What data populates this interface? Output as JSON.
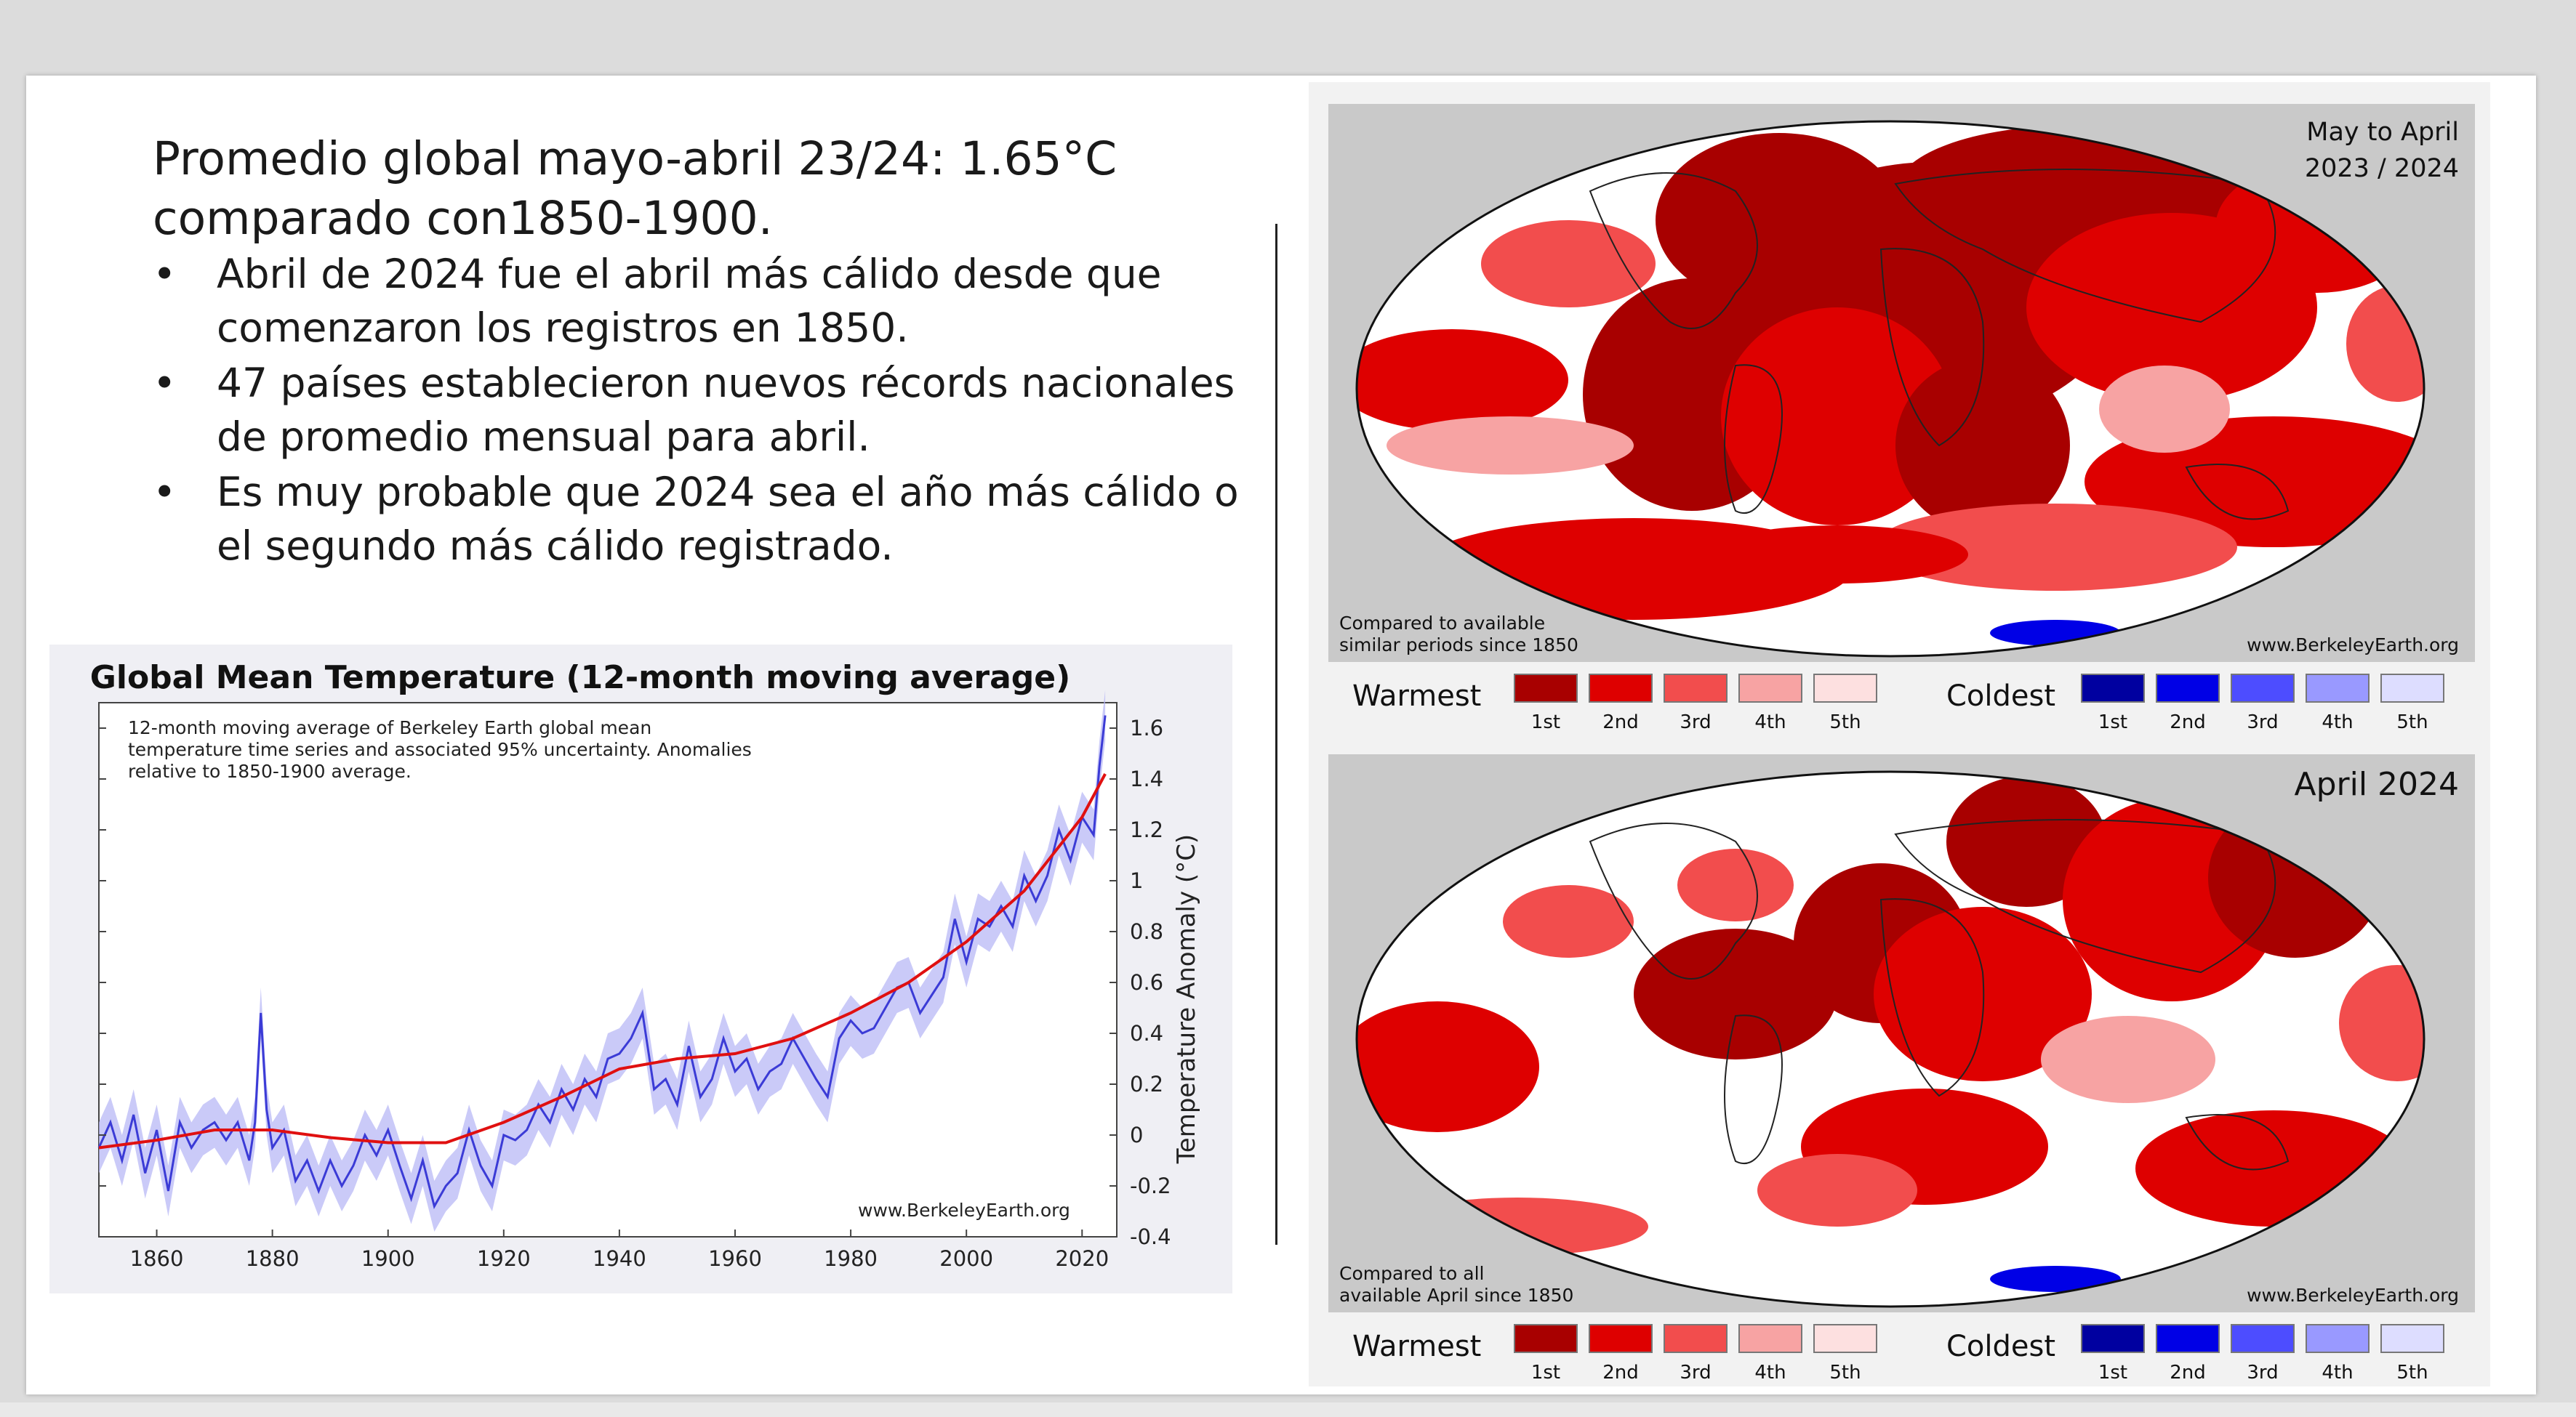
{
  "headline": [
    "Promedio global mayo-abril 23/24: 1.65°C",
    "comparado con1850-1900."
  ],
  "bullets": [
    "Abril de 2024 fue el abril más cálido desde que comenzaron los registros en 1850.",
    "47 países establecieron nuevos récords nacionales de promedio mensual para abril.",
    "Es muy probable que 2024 sea el año más cálido o el segundo más cálido registrado."
  ],
  "bullet_symbol": "•",
  "colors": {
    "warm": [
      "#a80000",
      "#de0000",
      "#f24d4d",
      "#f7a3a3",
      "#fde0e0"
    ],
    "cold": [
      "#0000a0",
      "#0000e6",
      "#4d4dff",
      "#9999ff",
      "#ddddff"
    ],
    "series_raw": "#3b3bd6",
    "series_band": "#b3b3f5",
    "series_smooth": "#e01010"
  },
  "chart_data": {
    "type": "line",
    "title": "Global Mean Temperature (12-month moving average)",
    "note": "12-month moving average of Berkeley Earth global mean temperature time series and associated 95% uncertainty. Anomalies relative to 1850-1900 average.",
    "source": "www.BerkeleyEarth.org",
    "xlabel": "",
    "ylabel": "Temperature Anomaly (°C)",
    "xlim": [
      1850,
      2026
    ],
    "ylim": [
      -0.4,
      1.7
    ],
    "xticks": [
      1860,
      1880,
      1900,
      1920,
      1940,
      1960,
      1980,
      2000,
      2020
    ],
    "yticks": [
      -0.4,
      -0.2,
      0,
      0.2,
      0.4,
      0.6,
      0.8,
      1,
      1.2,
      1.4,
      1.6
    ],
    "ytick_labels": [
      "-0.4",
      "-0.2",
      "0",
      "0.2",
      "0.4",
      "0.6",
      "0.8",
      "1",
      "1.2",
      "1.4",
      "1.6"
    ],
    "grid": false,
    "series": [
      {
        "role": "12-month moving average",
        "x": [
          1850,
          1852,
          1854,
          1856,
          1858,
          1860,
          1862,
          1864,
          1866,
          1868,
          1870,
          1872,
          1874,
          1876,
          1877,
          1878,
          1879,
          1880,
          1882,
          1884,
          1886,
          1888,
          1890,
          1892,
          1894,
          1896,
          1898,
          1900,
          1902,
          1904,
          1906,
          1908,
          1910,
          1912,
          1914,
          1916,
          1918,
          1920,
          1922,
          1924,
          1926,
          1928,
          1930,
          1932,
          1934,
          1936,
          1938,
          1940,
          1942,
          1944,
          1946,
          1948,
          1950,
          1952,
          1954,
          1956,
          1958,
          1960,
          1962,
          1964,
          1966,
          1968,
          1970,
          1972,
          1974,
          1976,
          1978,
          1980,
          1982,
          1984,
          1986,
          1988,
          1990,
          1992,
          1994,
          1996,
          1998,
          2000,
          2002,
          2004,
          2006,
          2008,
          2010,
          2012,
          2014,
          2016,
          2018,
          2020,
          2022,
          2023,
          2024
        ],
        "y": [
          -0.05,
          0.05,
          -0.1,
          0.08,
          -0.15,
          0.02,
          -0.22,
          0.05,
          -0.05,
          0.02,
          0.05,
          -0.02,
          0.05,
          -0.1,
          0.05,
          0.48,
          0.1,
          -0.05,
          0.02,
          -0.18,
          -0.1,
          -0.22,
          -0.1,
          -0.2,
          -0.12,
          0.0,
          -0.08,
          0.02,
          -0.12,
          -0.25,
          -0.1,
          -0.28,
          -0.2,
          -0.15,
          0.02,
          -0.12,
          -0.2,
          0.0,
          -0.02,
          0.02,
          0.12,
          0.05,
          0.18,
          0.1,
          0.22,
          0.15,
          0.3,
          0.32,
          0.38,
          0.48,
          0.18,
          0.22,
          0.12,
          0.35,
          0.15,
          0.22,
          0.38,
          0.25,
          0.3,
          0.18,
          0.25,
          0.28,
          0.38,
          0.3,
          0.22,
          0.15,
          0.38,
          0.45,
          0.4,
          0.42,
          0.5,
          0.58,
          0.6,
          0.48,
          0.55,
          0.62,
          0.85,
          0.68,
          0.85,
          0.82,
          0.9,
          0.82,
          1.02,
          0.92,
          1.02,
          1.2,
          1.08,
          1.25,
          1.18,
          1.45,
          1.65
        ]
      },
      {
        "role": "smoothed trend",
        "x": [
          1850,
          1860,
          1870,
          1880,
          1890,
          1900,
          1910,
          1920,
          1930,
          1940,
          1950,
          1960,
          1970,
          1980,
          1990,
          2000,
          2010,
          2020,
          2024
        ],
        "y": [
          -0.05,
          -0.02,
          0.02,
          0.02,
          -0.01,
          -0.03,
          -0.03,
          0.05,
          0.15,
          0.26,
          0.3,
          0.32,
          0.38,
          0.48,
          0.6,
          0.76,
          0.96,
          1.25,
          1.42
        ]
      }
    ]
  },
  "maps": [
    {
      "corner_lines": [
        "May to April",
        "2023 / 2024"
      ],
      "note_lines": [
        "Compared to available",
        "similar periods since 1850"
      ],
      "source": "www.BerkeleyEarth.org"
    },
    {
      "corner_lines": [
        "April 2024"
      ],
      "note_lines": [
        "Compared to all",
        "available April since 1850"
      ],
      "source": "www.BerkeleyEarth.org"
    }
  ],
  "legend": {
    "warm_label": "Warmest",
    "cold_label": "Coldest",
    "ranks": [
      "1st",
      "2nd",
      "3rd",
      "4th",
      "5th"
    ]
  }
}
